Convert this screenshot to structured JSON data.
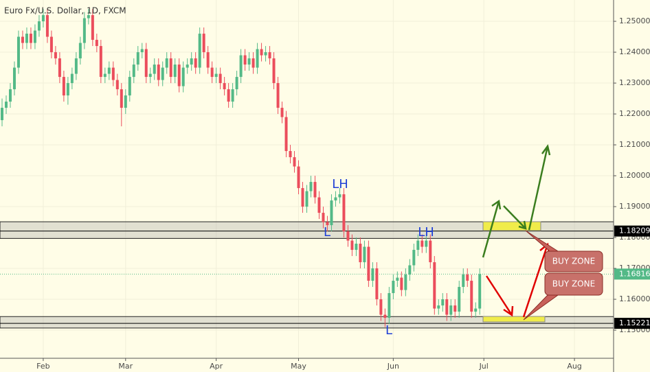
{
  "chart_data": {
    "type": "candlestick",
    "title": "Euro Fx/U.S. Dollar, 1D, FXCM",
    "up_color": "#53b987",
    "down_color": "#eb4d5c",
    "xlim": [
      -0.5,
      148.5
    ],
    "xticks": [
      {
        "value": 10,
        "label": "Feb"
      },
      {
        "value": 30,
        "label": "Mar"
      },
      {
        "value": 52,
        "label": "Apr"
      },
      {
        "value": 72,
        "label": "May"
      },
      {
        "value": 95,
        "label": "Jun"
      },
      {
        "value": 117,
        "label": "Jul"
      },
      {
        "value": 139,
        "label": "Aug"
      }
    ],
    "ylim": [
      1.1409,
      1.2569
    ],
    "yticks": [
      {
        "value": 1.15,
        "label": "1.15000"
      },
      {
        "value": 1.16,
        "label": "1.16000"
      },
      {
        "value": 1.17,
        "label": "1.17000"
      },
      {
        "value": 1.18,
        "label": "1.18000"
      },
      {
        "value": 1.19,
        "label": "1.19000"
      },
      {
        "value": 1.2,
        "label": "1.20000"
      },
      {
        "value": 1.21,
        "label": "1.21000"
      },
      {
        "value": 1.22,
        "label": "1.22000"
      },
      {
        "value": 1.23,
        "label": "1.23000"
      },
      {
        "value": 1.24,
        "label": "1.24000"
      },
      {
        "value": 1.25,
        "label": "1.25000"
      }
    ],
    "zones": [
      [
        1.1797,
        1.1851
      ],
      [
        1.1507,
        1.1544
      ]
    ],
    "price_lines": [
      {
        "value": 1.18209,
        "color": "#000000",
        "style": "solid"
      },
      {
        "value": 1.15221,
        "color": "#000000",
        "style": "solid"
      },
      {
        "value": 1.16816,
        "color": "#53b987",
        "style": "dotted"
      }
    ],
    "annotations": [
      "LH",
      "L",
      "LH",
      "L",
      "BUY ZONE",
      "BUY ZONE"
    ],
    "candles": [
      [
        1.218,
        1.225,
        1.216,
        1.222
      ],
      [
        1.222,
        1.226,
        1.22,
        1.224
      ],
      [
        1.224,
        1.23,
        1.222,
        1.228
      ],
      [
        1.228,
        1.237,
        1.226,
        1.235
      ],
      [
        1.235,
        1.247,
        1.233,
        1.245
      ],
      [
        1.245,
        1.247,
        1.241,
        1.243
      ],
      [
        1.243,
        1.248,
        1.241,
        1.246
      ],
      [
        1.246,
        1.248,
        1.241,
        1.243
      ],
      [
        1.243,
        1.249,
        1.241,
        1.247
      ],
      [
        1.247,
        1.252,
        1.245,
        1.25
      ],
      [
        1.25,
        1.254,
        1.248,
        1.252
      ],
      [
        1.252,
        1.254,
        1.243,
        1.245
      ],
      [
        1.245,
        1.247,
        1.238,
        1.24
      ],
      [
        1.24,
        1.242,
        1.236,
        1.238
      ],
      [
        1.238,
        1.24,
        1.23,
        1.232
      ],
      [
        1.232,
        1.234,
        1.224,
        1.226
      ],
      [
        1.226,
        1.232,
        1.223,
        1.23
      ],
      [
        1.23,
        1.235,
        1.228,
        1.233
      ],
      [
        1.233,
        1.24,
        1.231,
        1.238
      ],
      [
        1.238,
        1.245,
        1.236,
        1.243
      ],
      [
        1.243,
        1.253,
        1.241,
        1.251
      ],
      [
        1.251,
        1.254,
        1.249,
        1.252
      ],
      [
        1.252,
        1.254,
        1.242,
        1.244
      ],
      [
        1.244,
        1.246,
        1.24,
        1.242
      ],
      [
        1.242,
        1.244,
        1.23,
        1.232
      ],
      [
        1.232,
        1.235,
        1.23,
        1.233
      ],
      [
        1.233,
        1.237,
        1.231,
        1.235
      ],
      [
        1.235,
        1.237,
        1.229,
        1.231
      ],
      [
        1.231,
        1.233,
        1.226,
        1.228
      ],
      [
        1.228,
        1.23,
        1.216,
        1.222
      ],
      [
        1.222,
        1.228,
        1.22,
        1.226
      ],
      [
        1.226,
        1.234,
        1.224,
        1.232
      ],
      [
        1.232,
        1.238,
        1.23,
        1.236
      ],
      [
        1.236,
        1.242,
        1.234,
        1.24
      ],
      [
        1.24,
        1.243,
        1.238,
        1.241
      ],
      [
        1.241,
        1.243,
        1.23,
        1.232
      ],
      [
        1.232,
        1.235,
        1.23,
        1.233
      ],
      [
        1.233,
        1.238,
        1.231,
        1.236
      ],
      [
        1.236,
        1.238,
        1.229,
        1.231
      ],
      [
        1.231,
        1.237,
        1.229,
        1.235
      ],
      [
        1.235,
        1.24,
        1.233,
        1.238
      ],
      [
        1.238,
        1.24,
        1.23,
        1.232
      ],
      [
        1.232,
        1.238,
        1.23,
        1.236
      ],
      [
        1.236,
        1.238,
        1.227,
        1.229
      ],
      [
        1.229,
        1.237,
        1.227,
        1.235
      ],
      [
        1.235,
        1.238,
        1.233,
        1.236
      ],
      [
        1.236,
        1.24,
        1.234,
        1.238
      ],
      [
        1.238,
        1.24,
        1.233,
        1.235
      ],
      [
        1.235,
        1.248,
        1.233,
        1.246
      ],
      [
        1.246,
        1.248,
        1.238,
        1.24
      ],
      [
        1.24,
        1.242,
        1.233,
        1.235
      ],
      [
        1.235,
        1.237,
        1.23,
        1.232
      ],
      [
        1.232,
        1.235,
        1.23,
        1.233
      ],
      [
        1.233,
        1.235,
        1.228,
        1.23
      ],
      [
        1.23,
        1.232,
        1.226,
        1.228
      ],
      [
        1.228,
        1.23,
        1.222,
        1.224
      ],
      [
        1.224,
        1.23,
        1.222,
        1.228
      ],
      [
        1.228,
        1.234,
        1.226,
        1.232
      ],
      [
        1.232,
        1.241,
        1.23,
        1.239
      ],
      [
        1.239,
        1.241,
        1.234,
        1.236
      ],
      [
        1.236,
        1.24,
        1.234,
        1.238
      ],
      [
        1.238,
        1.24,
        1.233,
        1.235
      ],
      [
        1.235,
        1.243,
        1.233,
        1.241
      ],
      [
        1.241,
        1.243,
        1.237,
        1.239
      ],
      [
        1.239,
        1.242,
        1.237,
        1.24
      ],
      [
        1.24,
        1.242,
        1.236,
        1.238
      ],
      [
        1.238,
        1.24,
        1.228,
        1.23
      ],
      [
        1.23,
        1.232,
        1.22,
        1.222
      ],
      [
        1.222,
        1.224,
        1.217,
        1.219
      ],
      [
        1.219,
        1.221,
        1.206,
        1.208
      ],
      [
        1.208,
        1.21,
        1.204,
        1.206
      ],
      [
        1.206,
        1.208,
        1.201,
        1.203
      ],
      [
        1.203,
        1.205,
        1.194,
        1.196
      ],
      [
        1.196,
        1.198,
        1.188,
        1.19
      ],
      [
        1.19,
        1.197,
        1.188,
        1.195
      ],
      [
        1.195,
        1.2,
        1.193,
        1.198
      ],
      [
        1.198,
        1.2,
        1.191,
        1.193
      ],
      [
        1.193,
        1.195,
        1.186,
        1.188
      ],
      [
        1.188,
        1.19,
        1.183,
        1.185
      ],
      [
        1.185,
        1.187,
        1.182,
        1.184
      ],
      [
        1.184,
        1.194,
        1.182,
        1.192
      ],
      [
        1.192,
        1.195,
        1.19,
        1.193
      ],
      [
        1.193,
        1.196,
        1.191,
        1.194
      ],
      [
        1.194,
        1.196,
        1.18,
        1.182
      ],
      [
        1.182,
        1.184,
        1.177,
        1.179
      ],
      [
        1.179,
        1.181,
        1.174,
        1.176
      ],
      [
        1.176,
        1.18,
        1.174,
        1.178
      ],
      [
        1.178,
        1.18,
        1.17,
        1.172
      ],
      [
        1.172,
        1.179,
        1.17,
        1.177
      ],
      [
        1.177,
        1.179,
        1.164,
        1.166
      ],
      [
        1.166,
        1.172,
        1.164,
        1.17
      ],
      [
        1.17,
        1.172,
        1.158,
        1.16
      ],
      [
        1.16,
        1.162,
        1.153,
        1.155
      ],
      [
        1.155,
        1.157,
        1.151,
        1.154
      ],
      [
        1.154,
        1.164,
        1.152,
        1.162
      ],
      [
        1.162,
        1.168,
        1.16,
        1.166
      ],
      [
        1.166,
        1.169,
        1.164,
        1.167
      ],
      [
        1.167,
        1.169,
        1.161,
        1.163
      ],
      [
        1.163,
        1.17,
        1.161,
        1.168
      ],
      [
        1.168,
        1.173,
        1.166,
        1.171
      ],
      [
        1.171,
        1.178,
        1.169,
        1.176
      ],
      [
        1.176,
        1.181,
        1.174,
        1.179
      ],
      [
        1.179,
        1.181,
        1.175,
        1.177
      ],
      [
        1.177,
        1.181,
        1.175,
        1.179
      ],
      [
        1.179,
        1.181,
        1.17,
        1.172
      ],
      [
        1.172,
        1.174,
        1.155,
        1.157
      ],
      [
        1.157,
        1.16,
        1.155,
        1.158
      ],
      [
        1.158,
        1.162,
        1.156,
        1.16
      ],
      [
        1.16,
        1.162,
        1.153,
        1.155
      ],
      [
        1.155,
        1.16,
        1.153,
        1.158
      ],
      [
        1.158,
        1.16,
        1.154,
        1.156
      ],
      [
        1.156,
        1.166,
        1.154,
        1.164
      ],
      [
        1.164,
        1.17,
        1.162,
        1.168
      ],
      [
        1.168,
        1.17,
        1.164,
        1.166
      ],
      [
        1.166,
        1.168,
        1.154,
        1.156
      ],
      [
        1.156,
        1.159,
        1.154,
        1.157
      ],
      [
        1.157,
        1.17,
        1.155,
        1.16816
      ]
    ]
  }
}
